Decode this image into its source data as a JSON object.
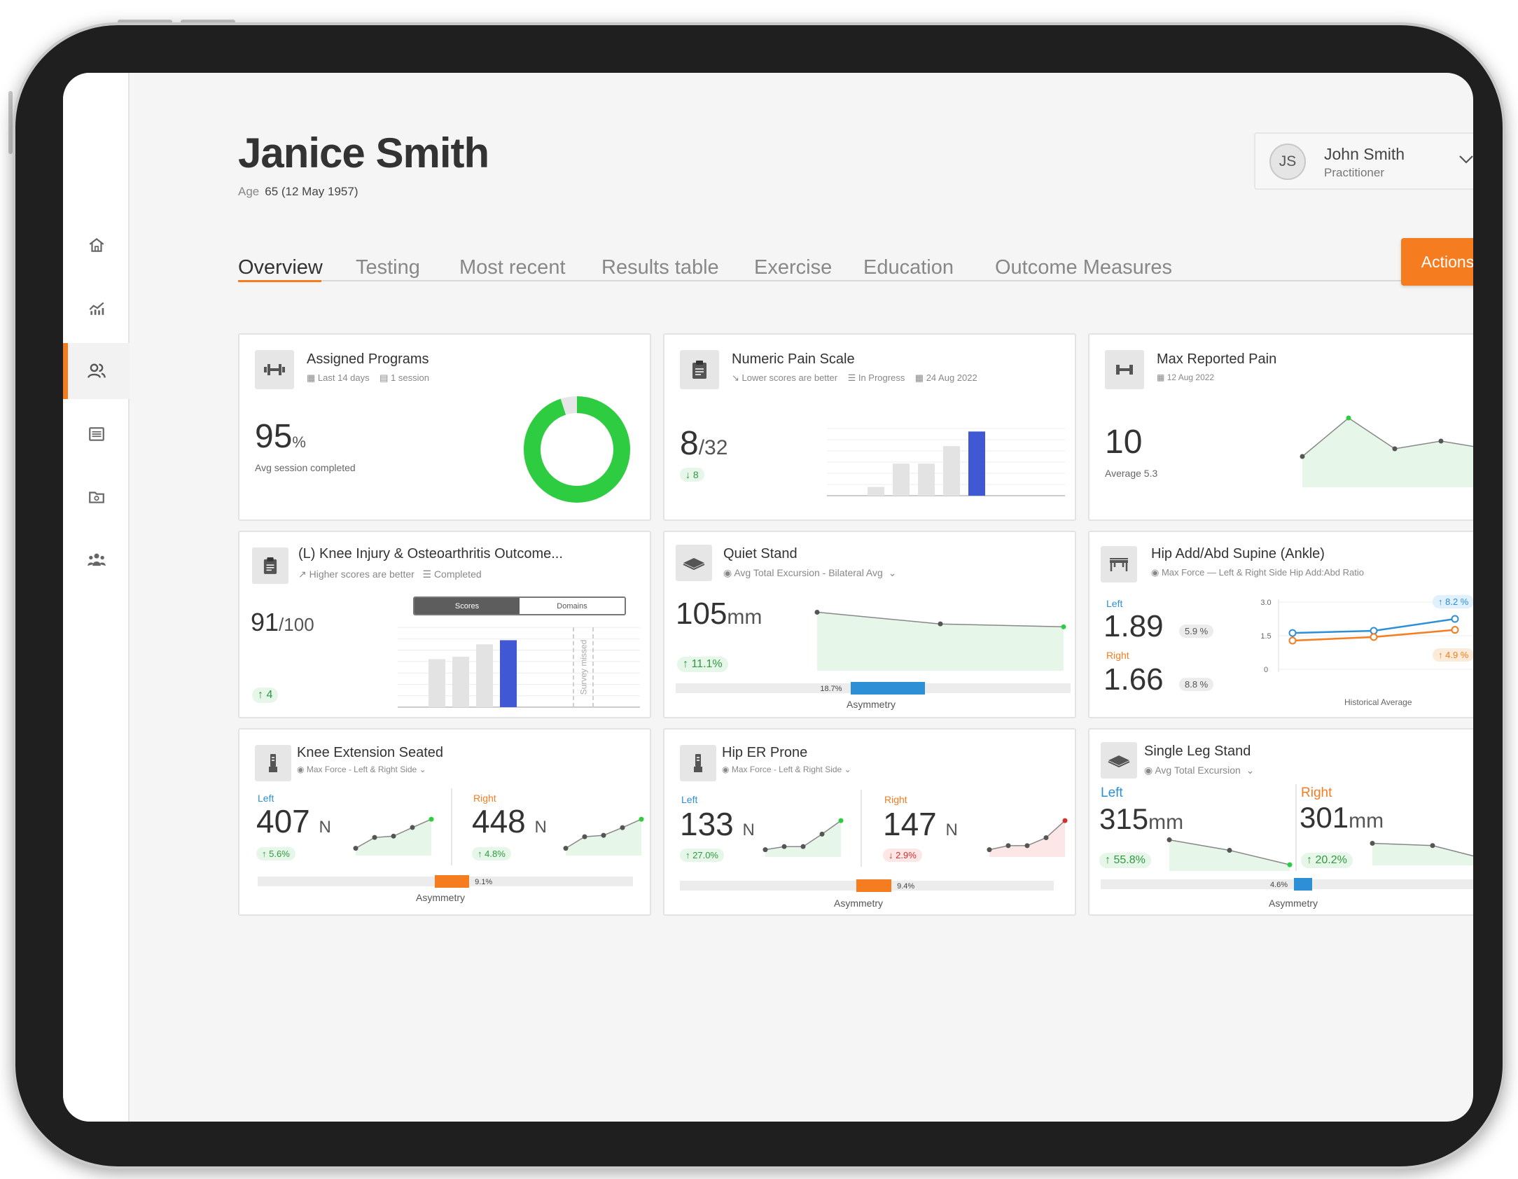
{
  "patient": {
    "name": "Janice Smith",
    "age_label": "Age",
    "age_value": "65 (12 May 1957)"
  },
  "practitioner": {
    "initials": "JS",
    "name": "John Smith",
    "role": "Practitioner"
  },
  "tabs": [
    "Overview",
    "Testing",
    "Most recent",
    "Results table",
    "Exercise",
    "Education",
    "Outcome Measures"
  ],
  "actions_label": "Actions",
  "sidebar": [
    "home-icon",
    "analytics-icon",
    "patients-icon",
    "list-icon",
    "folder-icon",
    "team-icon"
  ],
  "colors": {
    "accent": "#f57c1f",
    "left": "#2d8fd5",
    "right": "#f57c1f",
    "good": "#2ecc40",
    "bar_highlight": "#4158d4"
  },
  "cards": {
    "assigned": {
      "title": "Assigned Programs",
      "period": "Last 14 days",
      "sessions": "1 session",
      "value": "95",
      "unit": "%",
      "caption": "Avg session completed",
      "percent": 95
    },
    "nps": {
      "title": "Numeric Pain Scale",
      "note": "Lower scores are better",
      "status": "In Progress",
      "date": "24 Aug 2022",
      "value": "8",
      "denom": "/32",
      "change": "8"
    },
    "maxpain": {
      "title": "Max Reported Pain",
      "date": "12 Aug 2022",
      "value": "10",
      "avg_label": "Average",
      "avg_value": "5.3"
    },
    "koos": {
      "title": "(L) Knee Injury & Osteoarthritis Outcome...",
      "note": "Higher scores are better",
      "status": "Completed",
      "value": "91",
      "denom": "/100",
      "change": "4",
      "toggle_scores": "Scores",
      "toggle_domains": "Domains",
      "missed": "Survey missed"
    },
    "quiet": {
      "title": "Quiet Stand",
      "metric": "Avg Total Excursion - Bilateral Avg",
      "value": "105",
      "unit": "mm",
      "change": "11.1%",
      "asym_value": "18.7%",
      "asym_caption": "Asymmetry"
    },
    "hip_add": {
      "title": "Hip Add/Abd Supine (Ankle)",
      "metric": "Max Force — Left & Right Side Hip Add:Abd Ratio",
      "left_label": "Left",
      "left_value": "1.89",
      "left_pct": "5.9 %",
      "right_label": "Right",
      "right_value": "1.66",
      "right_pct": "8.8 %",
      "y_ticks": [
        "3.0",
        "1.5",
        "0"
      ],
      "left_change": "8.2 %",
      "right_change": "4.9 %",
      "x_caption": "Historical Average"
    },
    "knee_ext": {
      "title": "Knee Extension Seated",
      "metric": "Max Force - Left & Right Side",
      "left_label": "Left",
      "left_value": "407",
      "left_change": "5.6%",
      "right_label": "Right",
      "right_value": "448",
      "right_change": "4.8%",
      "unit": "N",
      "asym_value": "9.1%",
      "asym_caption": "Asymmetry"
    },
    "hip_er": {
      "title": "Hip ER Prone",
      "metric": "Max Force - Left & Right Side",
      "left_label": "Left",
      "left_value": "133",
      "left_change": "27.0%",
      "right_label": "Right",
      "right_value": "147",
      "right_change": "2.9%",
      "unit": "N",
      "asym_value": "9.4%",
      "asym_caption": "Asymmetry"
    },
    "single_leg": {
      "title": "Single Leg Stand",
      "metric": "Avg Total Excursion",
      "left_label": "Left",
      "left_value": "315",
      "left_change": "55.8%",
      "right_label": "Right",
      "right_value": "301",
      "right_change": "20.2%",
      "unit": "mm",
      "asym_value": "4.6%",
      "asym_caption": "Asymmetry"
    }
  },
  "chart_data": [
    {
      "type": "pie",
      "name": "assigned-programs-donut",
      "values": [
        95,
        5
      ],
      "categories": [
        "completed",
        "remaining"
      ]
    },
    {
      "type": "bar",
      "name": "numeric-pain-scale",
      "values": [
        3,
        11,
        11,
        17,
        22
      ],
      "ylim": [
        0,
        24
      ]
    },
    {
      "type": "area",
      "name": "max-reported-pain",
      "values": [
        4,
        9,
        5,
        6,
        5
      ],
      "ylim": [
        0,
        10
      ]
    },
    {
      "type": "bar",
      "name": "koos-scores",
      "values": [
        58,
        61,
        76,
        81
      ],
      "ylim": [
        0,
        100
      ]
    },
    {
      "type": "area",
      "name": "quiet-stand",
      "values": [
        120,
        112,
        110
      ],
      "ylim": [
        80,
        125
      ]
    },
    {
      "type": "line",
      "name": "hip-add-abd",
      "ylim": [
        0,
        3
      ],
      "series": [
        {
          "name": "Left",
          "values": [
            1.62,
            1.72,
            2.25
          ]
        },
        {
          "name": "Right",
          "values": [
            1.28,
            1.44,
            1.76
          ]
        }
      ]
    },
    {
      "type": "area",
      "name": "knee-ext-left",
      "values": [
        340,
        365,
        368,
        388,
        407
      ]
    },
    {
      "type": "area",
      "name": "knee-ext-right",
      "values": [
        365,
        398,
        402,
        424,
        448
      ]
    },
    {
      "type": "area",
      "name": "hip-er-left",
      "values": [
        105,
        108,
        108,
        120,
        133
      ]
    },
    {
      "type": "area",
      "name": "hip-er-right",
      "values": [
        118,
        122,
        122,
        130,
        147
      ]
    },
    {
      "type": "area",
      "name": "single-leg-left",
      "values": [
        365,
        344,
        315
      ]
    },
    {
      "type": "area",
      "name": "single-leg-right",
      "values": [
        332,
        328,
        301
      ]
    },
    {
      "type": "bar",
      "name": "asymmetry",
      "categories": [
        "Quiet Stand",
        "Knee Extension Seated",
        "Hip ER Prone",
        "Single Leg Stand"
      ],
      "values": [
        18.7,
        9.1,
        9.4,
        4.6
      ]
    }
  ]
}
